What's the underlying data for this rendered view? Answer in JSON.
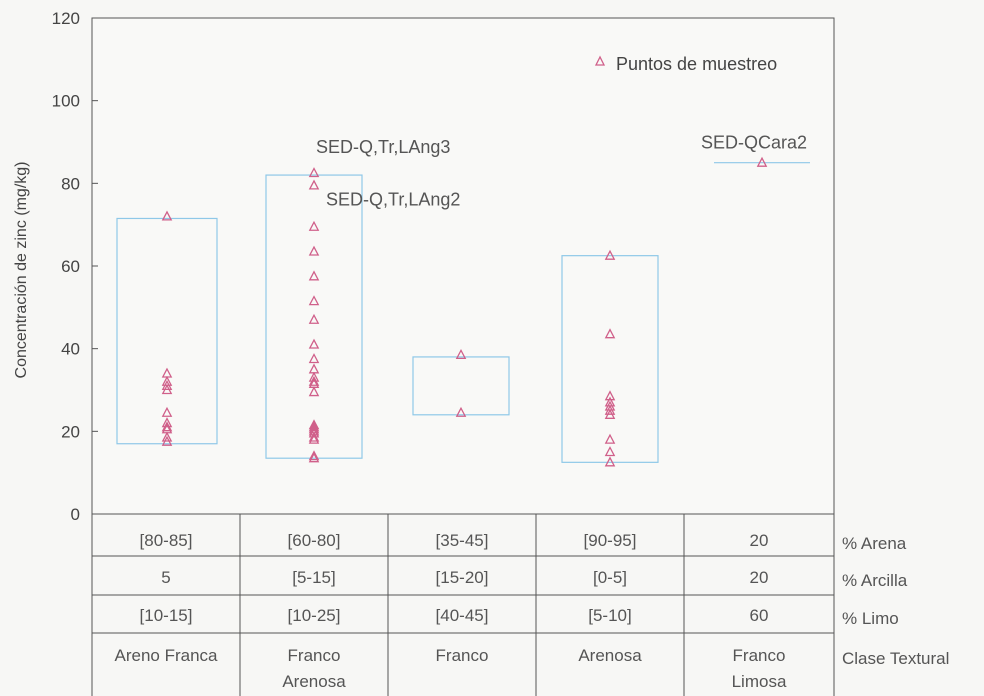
{
  "chart_data": {
    "type": "scatter",
    "ylabel": "Concentración de zinc (mg/kg)",
    "ylim": [
      0,
      120
    ],
    "yticks": [
      0,
      20,
      40,
      60,
      80,
      100,
      120
    ],
    "grid": false,
    "legend": {
      "position": "top-right",
      "entries": [
        "Puntos de muestreo"
      ]
    },
    "marker_color": "#d0608a",
    "box_color": "#8fc8e8",
    "categories": [
      "Areno Franca",
      "Franco Arenosa",
      "Franco",
      "Arenosa",
      "Franco Limosa"
    ],
    "series": [
      {
        "name": "Puntos de muestreo",
        "points": [
          [
            72.0,
            34.0,
            32.0,
            31.0,
            30.0,
            24.5,
            22.0,
            21.0,
            20.5,
            18.5,
            17.5
          ],
          [
            82.5,
            79.5,
            69.5,
            63.5,
            57.5,
            51.5,
            47.0,
            41.0,
            37.5,
            35.0,
            33.0,
            32.0,
            31.5,
            29.5,
            21.5,
            21.0,
            20.5,
            20.0,
            19.5,
            18.5,
            18.0,
            14.0,
            13.5
          ],
          [
            38.5,
            24.5
          ],
          [
            62.5,
            43.5,
            28.5,
            27.0,
            26.0,
            25.0,
            24.0,
            18.0,
            15.0,
            12.5
          ],
          [
            85.0
          ]
        ]
      }
    ],
    "ranges": [
      [
        17,
        71.5
      ],
      [
        13.5,
        82
      ],
      [
        24,
        38
      ],
      [
        12.5,
        62.5
      ],
      [
        85,
        85
      ]
    ],
    "annotations": [
      {
        "text": "SED-Q,Tr,LAng3",
        "category": "Franco Arenosa",
        "y": 82.5
      },
      {
        "text": "SED-Q,Tr,LAng2",
        "category": "Franco Arenosa",
        "y": 79.5
      },
      {
        "text": "SED-QCara2",
        "category": "Franco Limosa",
        "y": 85.0
      }
    ],
    "table": {
      "row_labels": [
        "% Arena",
        "% Arcilla",
        "% Limo",
        "Clase Textural"
      ],
      "rows": [
        [
          "[80-85]",
          "[60-80]",
          "[35-45]",
          "[90-95]",
          "20"
        ],
        [
          "5",
          "[5-15]",
          "[15-20]",
          "[0-5]",
          "20"
        ],
        [
          "[10-15]",
          "[10-25]",
          "[40-45]",
          "[5-10]",
          "60"
        ],
        [
          [
            "Areno Franca"
          ],
          [
            "Franco",
            "Arenosa"
          ],
          [
            "Franco"
          ],
          [
            "Arenosa"
          ],
          [
            "Franco",
            "Limosa"
          ]
        ]
      ]
    }
  }
}
